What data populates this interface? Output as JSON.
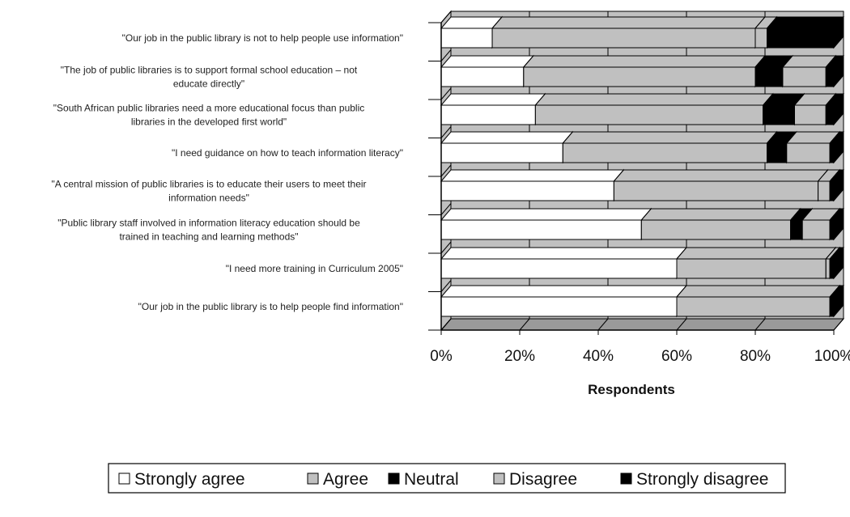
{
  "chart_data": {
    "type": "bar",
    "orientation": "horizontal",
    "stacked": "percent",
    "three_d": true,
    "categories": [
      [
        "\"Our job in the public library is not to help people use information\""
      ],
      [
        "\"The job of public libraries is to support  formal school education – not",
        "educate directly\""
      ],
      [
        "\"South African public libraries need a more educational focus than public",
        "libraries in the developed first world\""
      ],
      [
        "\"I need guidance on how to teach information literacy\""
      ],
      [
        "\"A central mission of public libraries is to educate their users to meet their",
        "information needs\""
      ],
      [
        "\"Public library staff involved in information literacy education should be",
        "trained in teaching and learning methods\""
      ],
      [
        "\"I need more training in Curriculum  2005\""
      ],
      [
        "\"Our job in the public library is to help people find information\""
      ]
    ],
    "series": [
      {
        "name": "Strongly agree",
        "color": "#ffffff",
        "values": [
          13,
          21,
          24,
          31,
          44,
          51,
          60,
          60
        ]
      },
      {
        "name": "Agree",
        "color": "#c0c0c0",
        "values": [
          67,
          59,
          58,
          52,
          52,
          38,
          38,
          39
        ]
      },
      {
        "name": "Neutral",
        "color": "#000000",
        "values": [
          0,
          7,
          8,
          5,
          0,
          3,
          0,
          0
        ]
      },
      {
        "name": "Disagree",
        "color": "#c0c0c0",
        "values": [
          3,
          11,
          8,
          11,
          3,
          7,
          1,
          0
        ]
      },
      {
        "name": "Strongly disagree",
        "color": "#000000",
        "values": [
          17,
          2,
          2,
          1,
          1,
          1,
          1,
          1
        ]
      }
    ],
    "xlabel": "Respondents",
    "x_ticks": [
      "0%",
      "20%",
      "40%",
      "60%",
      "80%",
      "100%"
    ],
    "xlim": [
      0,
      100
    ],
    "grid": "vertical",
    "wall_color": "#c0c0c0",
    "legend": {
      "placement": "bottom",
      "entries": [
        "Strongly agree",
        "Agree",
        "Neutral",
        "Disagree",
        "Strongly disagree"
      ]
    }
  }
}
